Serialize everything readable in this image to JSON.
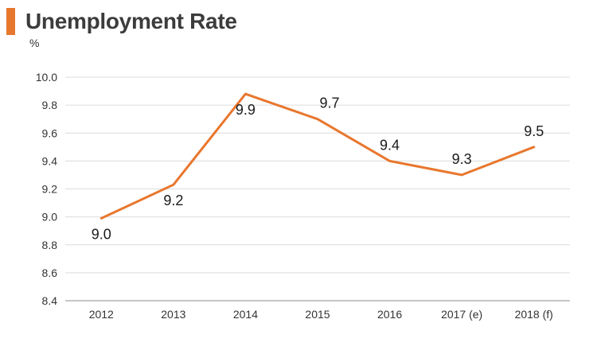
{
  "header": {
    "title": "Unemployment Rate",
    "unit": "%",
    "accent_color": "#e8772e"
  },
  "chart_data": {
    "type": "line",
    "title": "Unemployment Rate",
    "ylabel": "%",
    "xlabel": "",
    "categories": [
      "2012",
      "2013",
      "2014",
      "2015",
      "2016",
      "2017 (e)",
      "2018 (f)"
    ],
    "series": [
      {
        "values": [
          8.99,
          9.23,
          9.88,
          9.7,
          9.4,
          9.3,
          9.5
        ],
        "data_labels": [
          "9.0",
          "9.2",
          "9.9",
          "9.7",
          "9.4",
          "9.3",
          "9.5"
        ],
        "color": "#e8772e"
      }
    ],
    "ylim": [
      8.4,
      10.0
    ],
    "yticks": [
      "10.0",
      "9.8",
      "9.6",
      "9.4",
      "9.2",
      "9.0",
      "8.8",
      "8.6",
      "8.4"
    ],
    "grid": true,
    "legend": "none"
  }
}
